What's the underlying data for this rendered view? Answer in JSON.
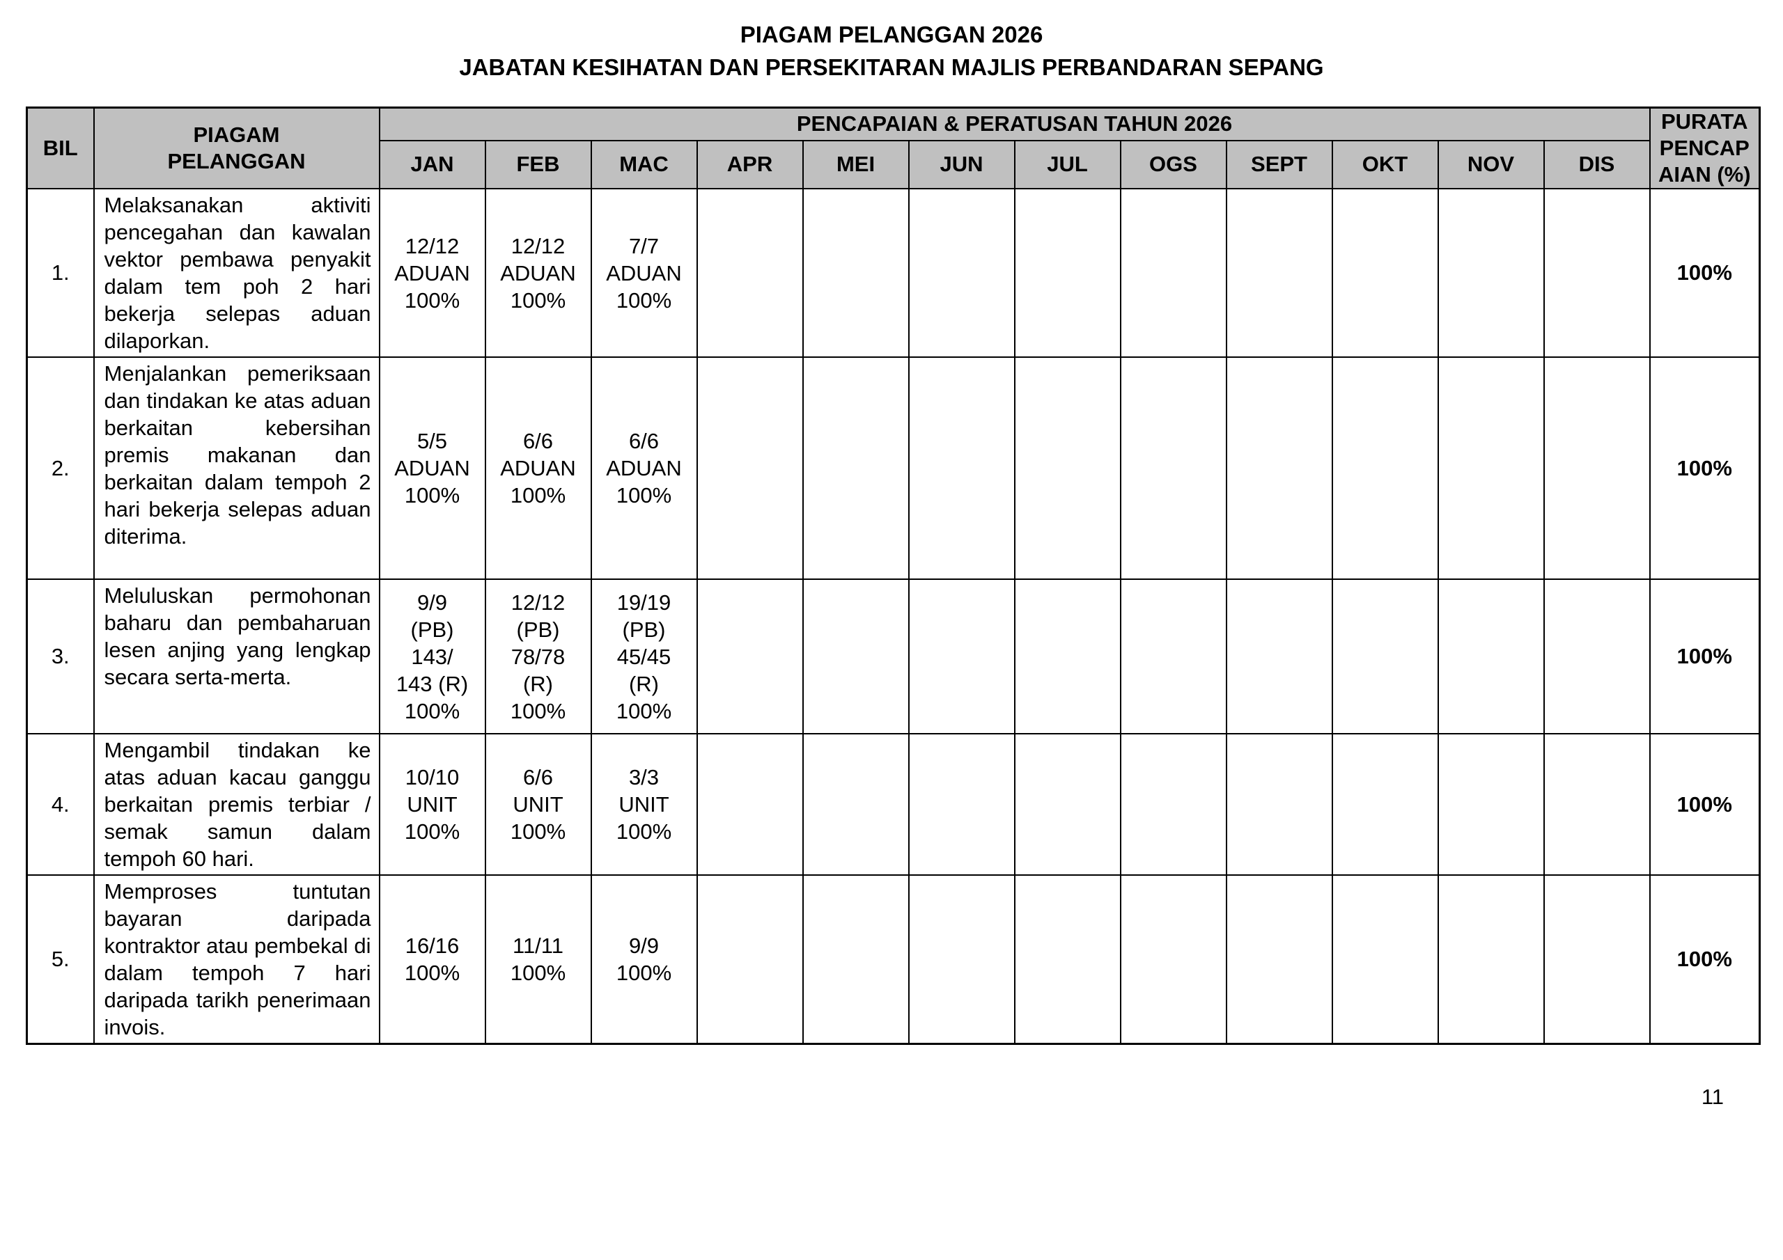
{
  "page": {
    "title": "PIAGAM PELANGGAN 2026\nJABATAN KESIHATAN DAN PERSEKITARAN MAJLIS PERBANDARAN SEPANG",
    "page_number": "11"
  },
  "colors": {
    "header_bg": "#c0c0c0",
    "border": "#000000",
    "text": "#000000",
    "page_bg": "#ffffff"
  },
  "table": {
    "headers": {
      "bil": "BIL",
      "piagam": "PIAGAM\nPELANGGAN",
      "pencapaian": "PENCAPAIAN & PERATUSAN TAHUN 2026",
      "months": [
        "JAN",
        "FEB",
        "MAC",
        "APR",
        "MEI",
        "JUN",
        "JUL",
        "OGS",
        "SEPT",
        "OKT",
        "NOV",
        "DIS"
      ],
      "purata": "PURATA\nPENCAP\nAIAN (%)"
    },
    "rows": [
      {
        "bil": "1.",
        "desc": "Melaksanakan aktiviti pencegahan dan kawalan vektor pembawa penyakit dalam tem poh 2 hari bekerja selepas aduan dilaporkan.",
        "months": [
          "12/12\nADUAN\n100%",
          "12/12\nADUAN\n100%",
          "7/7\nADUAN\n100%",
          "",
          "",
          "",
          "",
          "",
          "",
          "",
          "",
          ""
        ],
        "purata": "100%"
      },
      {
        "bil": "2.",
        "desc": "Menjalankan pemeriksaan dan tindakan ke atas aduan berkaitan kebersihan premis makanan dan berkaitan dalam tempoh 2 hari bekerja selepas aduan diterima.",
        "months": [
          "5/5\nADUAN\n100%",
          "6/6\nADUAN\n100%",
          "6/6\nADUAN\n100%",
          "",
          "",
          "",
          "",
          "",
          "",
          "",
          "",
          ""
        ],
        "purata": "100%"
      },
      {
        "bil": "3.",
        "desc": "Meluluskan permohonan baharu dan pembaharuan lesen anjing yang lengkap secara serta-merta.",
        "months": [
          "9/9\n(PB)\n143/\n143 (R)\n100%",
          "12/12\n(PB)\n78/78\n(R)\n100%",
          "19/19\n(PB)\n45/45\n(R)\n100%",
          "",
          "",
          "",
          "",
          "",
          "",
          "",
          "",
          ""
        ],
        "purata": "100%"
      },
      {
        "bil": "4.",
        "desc": "Mengambil tindakan ke atas aduan kacau ganggu berkaitan premis terbiar / semak samun dalam tempoh 60 hari.",
        "months": [
          "10/10\nUNIT\n100%",
          "6/6\nUNIT\n100%",
          "3/3\nUNIT\n100%",
          "",
          "",
          "",
          "",
          "",
          "",
          "",
          "",
          ""
        ],
        "purata": "100%"
      },
      {
        "bil": "5.",
        "desc": "Memproses tuntutan bayaran daripada kontraktor atau pembekal di dalam tempoh 7 hari daripada tarikh penerimaan invois.",
        "months": [
          "16/16\n100%",
          "11/11\n100%",
          "9/9\n100%",
          "",
          "",
          "",
          "",
          "",
          "",
          "",
          "",
          ""
        ],
        "purata": "100%"
      }
    ]
  }
}
